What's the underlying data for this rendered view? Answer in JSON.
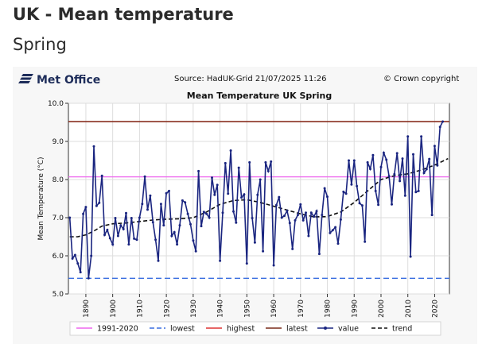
{
  "page": {
    "title": "UK - Mean temperature",
    "subtitle": "Spring"
  },
  "header": {
    "logo_text": "Met Office",
    "source": "Source: HadUK-Grid 21/07/2025 11:26",
    "copyright": "© Crown copyright"
  },
  "colors": {
    "value_line": "#1a2580",
    "trend_line": "#111111",
    "baseline_1991_2020": "#ee66ee",
    "lowest": "#3a6fe0",
    "highest": "#dd3333",
    "latest": "#7a2a18",
    "grid": "#dddddd"
  },
  "chart_data": {
    "type": "line",
    "title": "Mean Temperature UK Spring",
    "ylabel": "Mean Temperature (°C)",
    "xlabel": "",
    "xlim": [
      1883.5,
      2025.5
    ],
    "ylim": [
      5.0,
      10.0
    ],
    "x_ticks": [
      1890,
      1900,
      1910,
      1920,
      1930,
      1940,
      1950,
      1960,
      1970,
      1980,
      1990,
      2000,
      2010,
      2020
    ],
    "y_ticks": [
      5.0,
      6.0,
      7.0,
      8.0,
      9.0,
      10.0
    ],
    "grid": true,
    "legend_position": "bottom",
    "legend": [
      "1991-2020",
      "lowest",
      "highest",
      "latest",
      "value",
      "trend"
    ],
    "reference_lines": [
      {
        "name": "1991-2020",
        "value": 8.07
      },
      {
        "name": "lowest",
        "value": 5.41
      },
      {
        "name": "highest",
        "value": 9.52
      },
      {
        "name": "latest",
        "value": 9.52
      }
    ],
    "series": [
      {
        "name": "value",
        "x_start": 1884,
        "values": [
          7.0,
          5.93,
          6.02,
          5.8,
          5.57,
          7.1,
          7.28,
          5.41,
          6.0,
          8.87,
          7.31,
          7.39,
          8.1,
          6.55,
          6.68,
          6.46,
          6.3,
          6.99,
          6.52,
          6.8,
          6.7,
          7.12,
          6.3,
          6.99,
          6.45,
          6.42,
          7.0,
          7.36,
          8.08,
          7.21,
          7.58,
          6.88,
          6.42,
          5.87,
          7.36,
          6.8,
          7.64,
          7.7,
          6.52,
          6.62,
          6.3,
          6.8,
          7.45,
          7.4,
          7.1,
          6.83,
          6.4,
          6.12,
          8.22,
          6.78,
          7.15,
          7.1,
          7.0,
          8.05,
          7.6,
          7.86,
          5.87,
          7.13,
          8.43,
          7.63,
          8.76,
          7.16,
          6.87,
          8.31,
          7.53,
          7.61,
          5.8,
          8.45,
          6.99,
          6.35,
          7.6,
          8.0,
          6.12,
          8.45,
          8.22,
          8.47,
          5.75,
          7.33,
          7.54,
          7.0,
          7.05,
          7.18,
          6.86,
          6.18,
          6.93,
          7.07,
          7.35,
          6.93,
          7.13,
          6.52,
          7.13,
          7.03,
          7.17,
          6.05,
          7.07,
          7.77,
          7.55,
          6.6,
          6.67,
          6.75,
          6.32,
          6.95,
          7.68,
          7.63,
          8.5,
          7.87,
          8.5,
          7.83,
          7.38,
          7.32,
          6.37,
          8.45,
          8.28,
          8.64,
          7.7,
          7.34,
          8.33,
          8.7,
          8.52,
          8.09,
          7.35,
          8.14,
          8.69,
          7.96,
          8.55,
          7.58,
          9.13,
          5.98,
          8.66,
          7.67,
          7.7,
          9.13,
          8.17,
          8.27,
          8.54,
          7.07,
          8.88,
          8.37,
          9.38,
          9.52
        ]
      },
      {
        "name": "trend",
        "x": [
          1884,
          1887,
          1890,
          1893,
          1896,
          1900,
          1905,
          1910,
          1915,
          1920,
          1925,
          1930,
          1935,
          1940,
          1945,
          1950,
          1955,
          1960,
          1965,
          1970,
          1975,
          1980,
          1985,
          1990,
          1995,
          2000,
          2005,
          2010,
          2015,
          2020,
          2025
        ],
        "values": [
          6.5,
          6.5,
          6.55,
          6.65,
          6.78,
          6.84,
          6.86,
          6.9,
          6.94,
          6.96,
          6.97,
          7.0,
          7.15,
          7.35,
          7.45,
          7.47,
          7.4,
          7.3,
          7.2,
          7.1,
          7.02,
          7.03,
          7.15,
          7.4,
          7.7,
          8.0,
          8.1,
          8.15,
          8.25,
          8.38,
          8.55
        ]
      }
    ]
  }
}
